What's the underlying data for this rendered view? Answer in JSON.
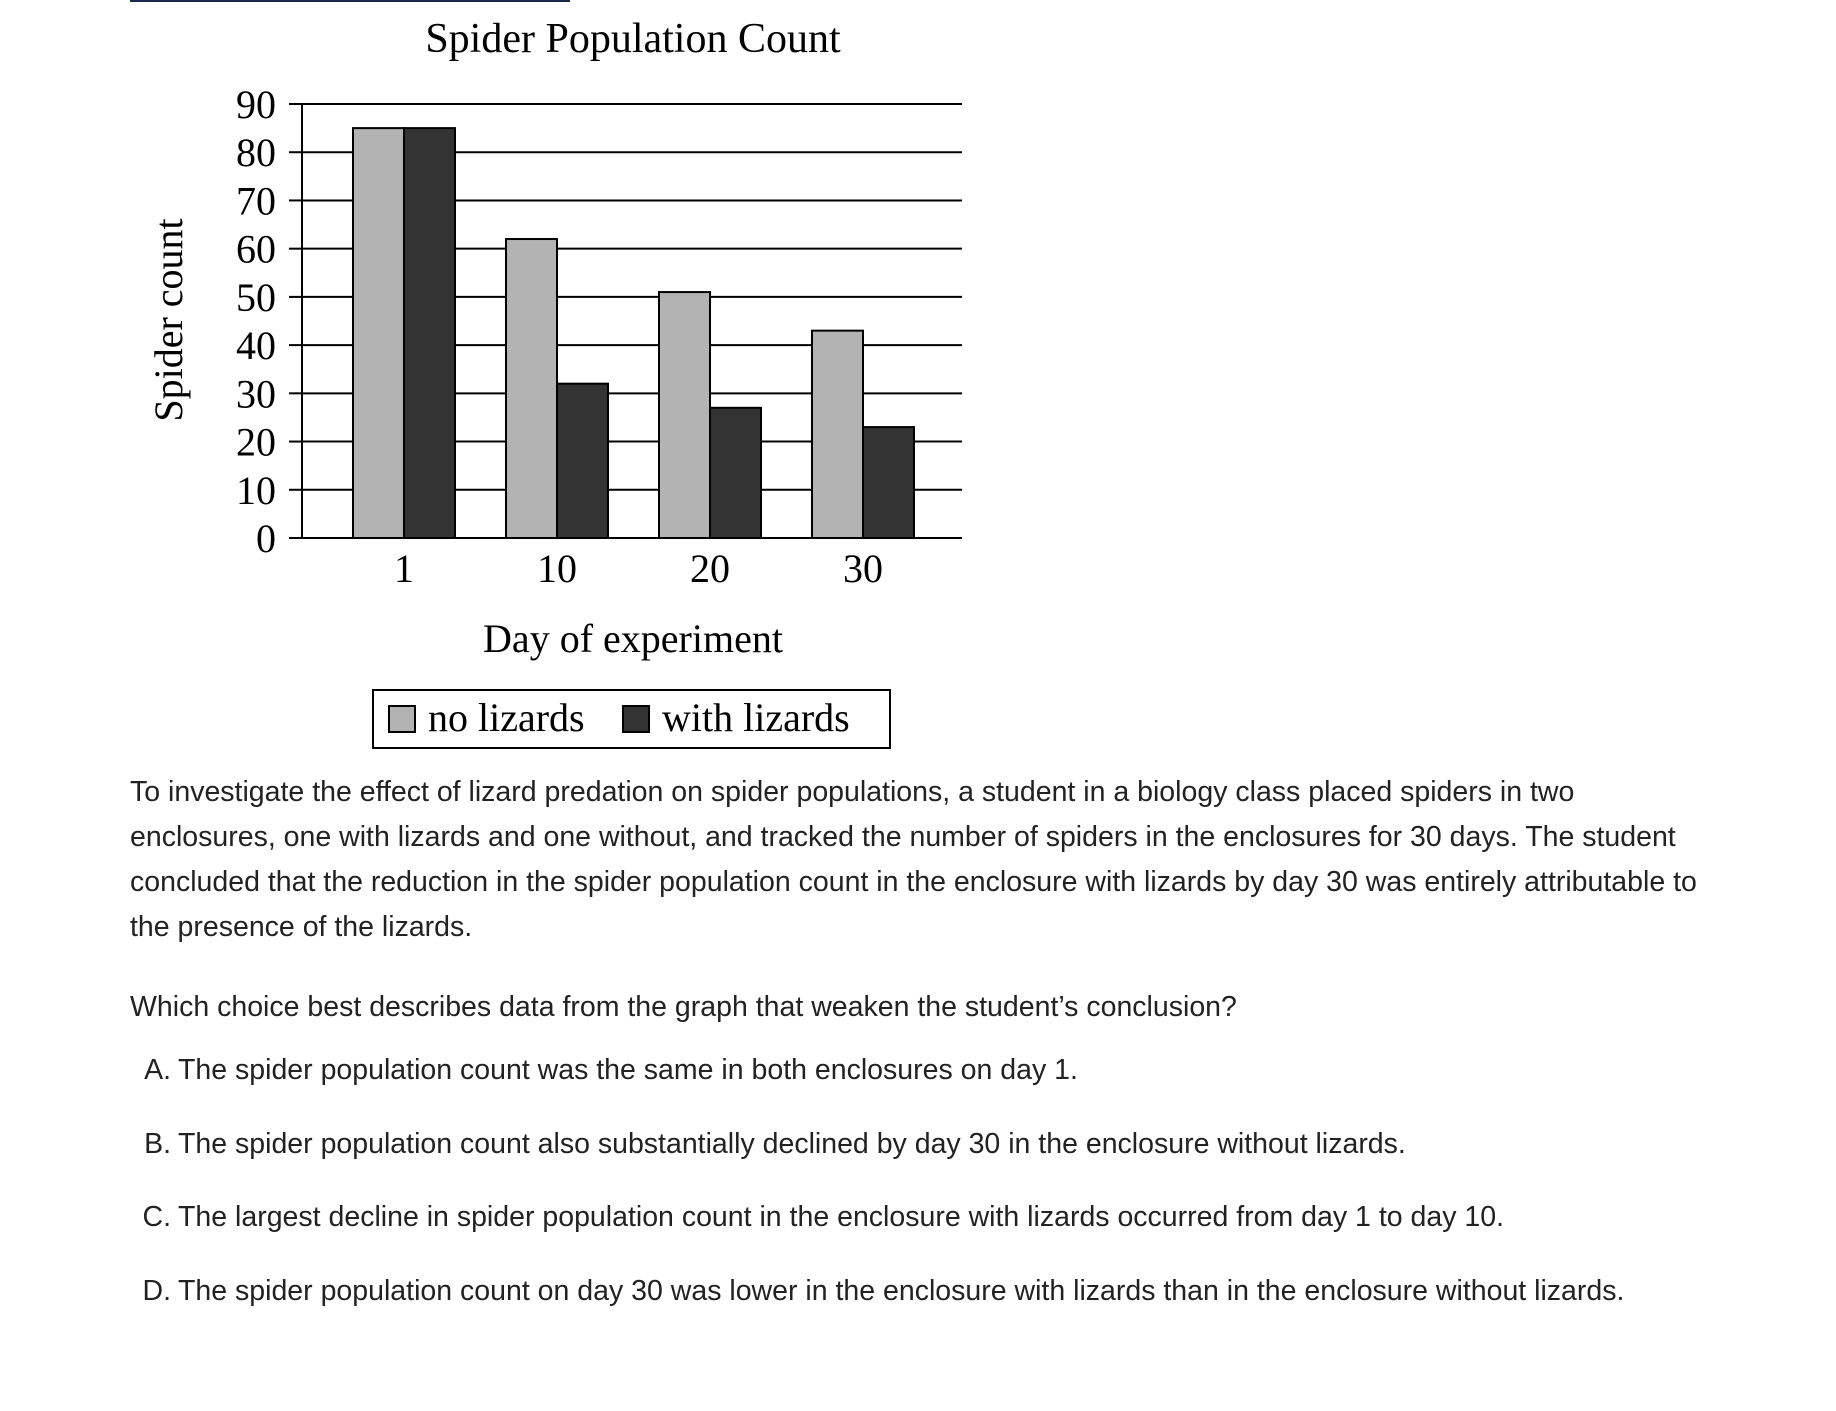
{
  "chart_data": {
    "type": "bar",
    "title": "Spider Population Count",
    "xlabel": "Day of experiment",
    "ylabel": "Spider count",
    "categories": [
      "1",
      "10",
      "20",
      "30"
    ],
    "ylim": [
      0,
      90
    ],
    "yticks": [
      "0",
      "10",
      "20",
      "30",
      "40",
      "50",
      "60",
      "70",
      "80",
      "90"
    ],
    "grid": true,
    "legend_position": "bottom",
    "series": [
      {
        "name": "no lizards",
        "values": [
          85,
          62,
          51,
          43
        ],
        "color": "#b3b3b3"
      },
      {
        "name": "with lizards",
        "values": [
          85,
          32,
          27,
          23
        ],
        "color": "#333333"
      }
    ]
  },
  "question": {
    "passage": "To investigate the effect of lizard predation on spider populations, a student in a biology class placed spiders in two enclosures, one with lizards and one without, and tracked the number of spiders in the enclosures for 30 days. The student concluded that the reduction in the spider population count in the enclosure with lizards by day 30 was entirely attributable to the presence of the lizards.",
    "stem": "Which choice best describes data from the graph that weaken the student’s conclusion?",
    "choices": [
      {
        "letter": "A.",
        "text": "The spider population count was the same in both enclosures on day 1."
      },
      {
        "letter": "B.",
        "text": "The spider population count also substantially declined by day 30 in the enclosure without lizards."
      },
      {
        "letter": "C.",
        "text": "The largest decline in spider population count in the enclosure with lizards occurred from day 1 to day 10."
      },
      {
        "letter": "D.",
        "text": "The spider population count on day 30 was lower in the enclosure with lizards than in the enclosure without lizards."
      }
    ]
  }
}
